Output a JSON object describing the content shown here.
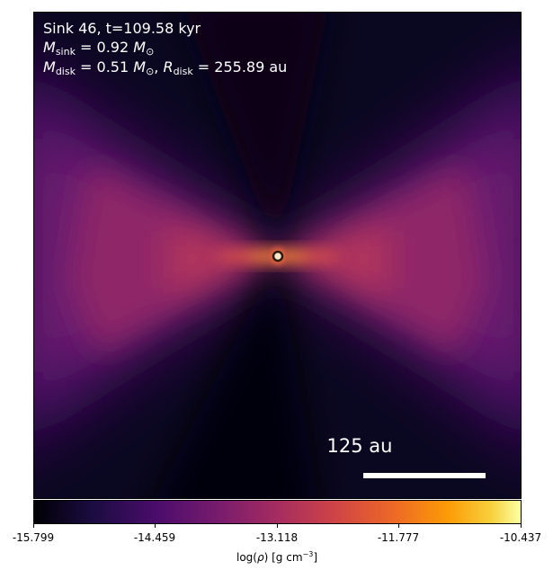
{
  "info": {
    "line1": "Sink 46, t=109.58 kyr",
    "msink_label": "sink",
    "msink_value": "0.92",
    "msun": "M",
    "mdisk_label": "disk",
    "mdisk_value": "0.51",
    "rdisk_label": "disk",
    "rdisk_value": "255.89",
    "rdisk_unit": "au"
  },
  "scalebar": {
    "label": "125 au",
    "length_au": 125
  },
  "colorbar": {
    "ticks": [
      "-15.799",
      "-14.459",
      "-13.118",
      "-11.777",
      "-10.437"
    ],
    "min": -15.799,
    "max": -10.437,
    "colormap": "inferno",
    "label_prefix": "log(",
    "label_rho": "ρ",
    "label_suffix": ") [g cm",
    "label_exp": "−3",
    "label_end": "]"
  },
  "colors": {
    "background_dark": "#05040f",
    "lobe_purple": "#6a1a6e",
    "disk_orange": "#f07030",
    "sink_marker": "#f7e6c8"
  }
}
